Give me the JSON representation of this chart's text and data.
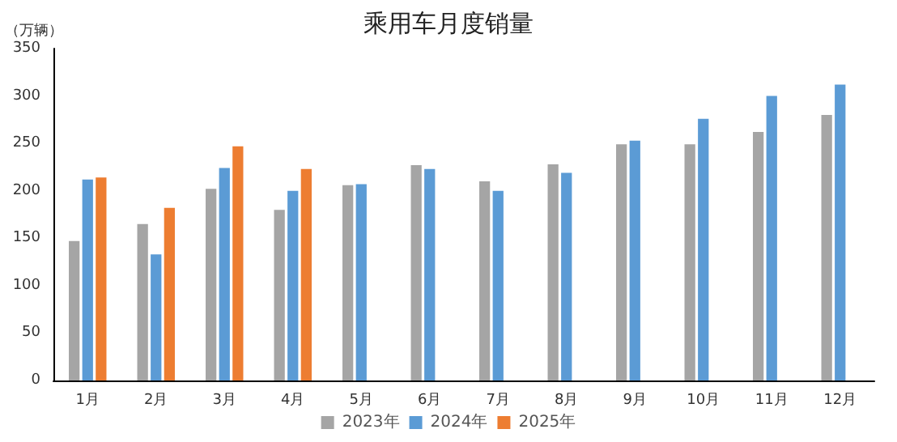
{
  "chart_data": {
    "type": "bar",
    "title": "乘用车月度销量",
    "ylabel": "（万辆）",
    "categories": [
      "1月",
      "2月",
      "3月",
      "4月",
      "5月",
      "6月",
      "7月",
      "8月",
      "9月",
      "10月",
      "11月",
      "12月"
    ],
    "series": [
      {
        "name": "2023年",
        "color": "#a5a5a5",
        "values": [
          147,
          165,
          202,
          180,
          206,
          227,
          210,
          228,
          249,
          249,
          262,
          280
        ]
      },
      {
        "name": "2024年",
        "color": "#5b9bd5",
        "values": [
          212,
          133,
          224,
          200,
          207,
          223,
          200,
          219,
          253,
          276,
          300,
          312
        ]
      },
      {
        "name": "2025年",
        "color": "#ed7d31",
        "values": [
          214,
          182,
          247,
          223,
          null,
          null,
          null,
          null,
          null,
          null,
          null,
          null
        ]
      }
    ],
    "ylim": [
      0,
      350
    ],
    "yticks": [
      0,
      50,
      100,
      150,
      200,
      250,
      300,
      350
    ],
    "grid": false,
    "legend": "bottom"
  }
}
